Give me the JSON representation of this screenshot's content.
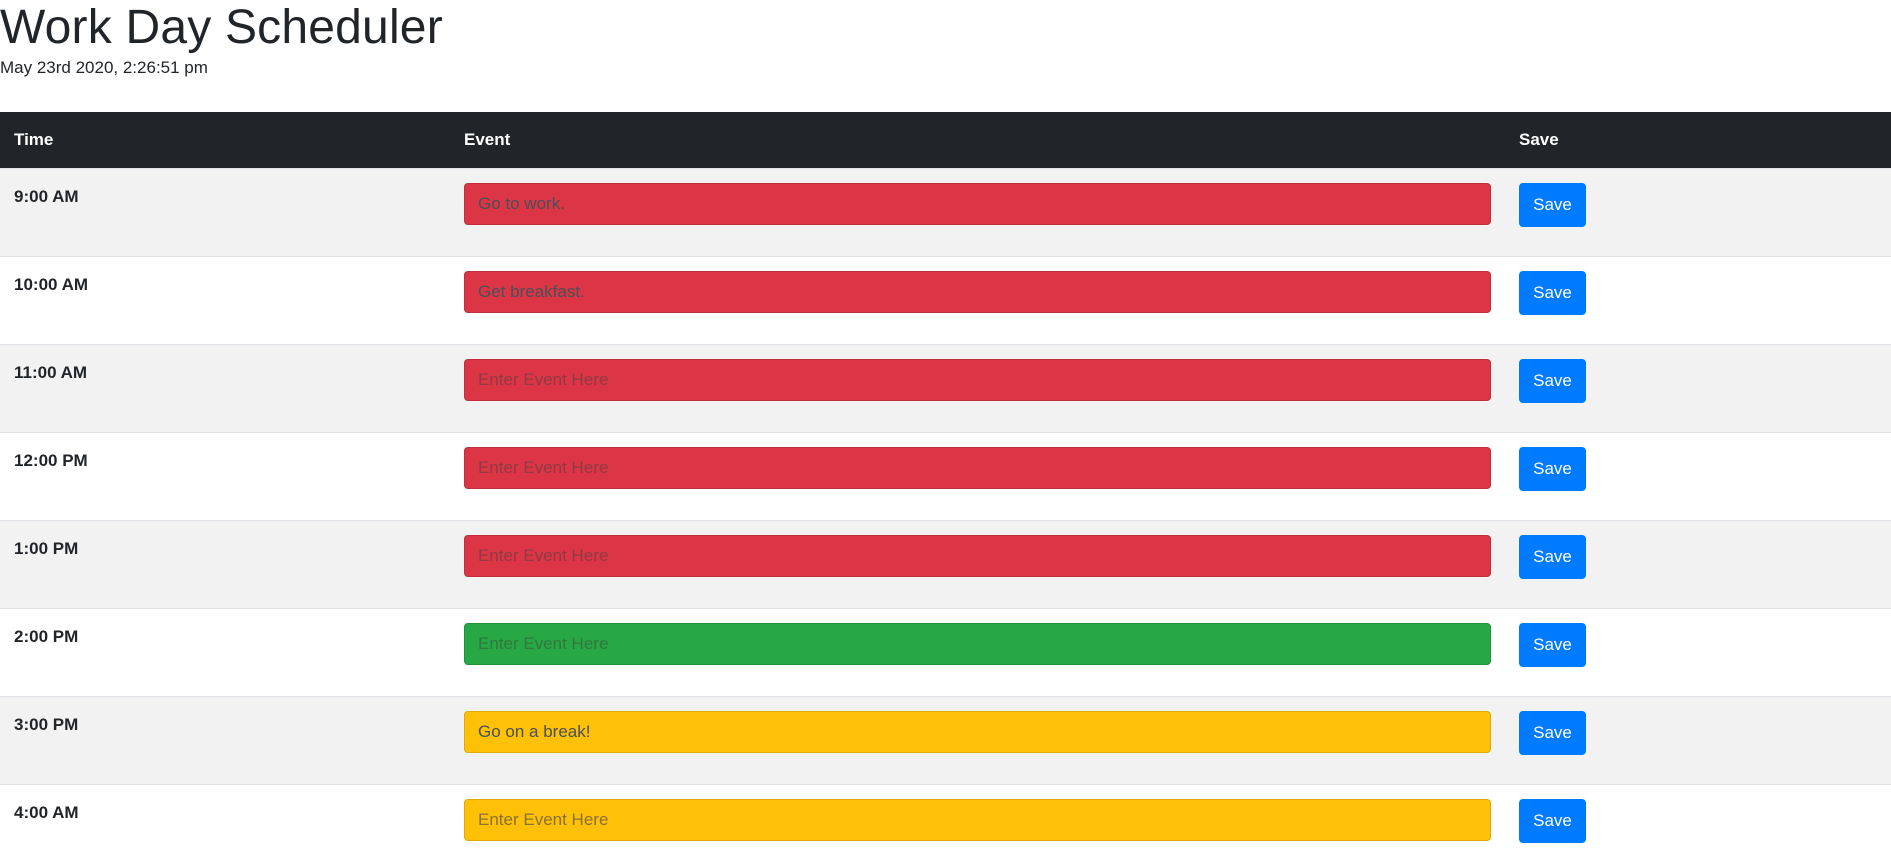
{
  "header": {
    "title": "Work Day Scheduler",
    "timestamp": "May 23rd 2020, 2:26:51 pm"
  },
  "table": {
    "columns": [
      "Time",
      "Event",
      "Save"
    ],
    "rows": [
      {
        "time": "9:00 AM",
        "value": "Go to work.",
        "placeholder": "Enter Event Here",
        "status": "past",
        "save_label": "Save"
      },
      {
        "time": "10:00 AM",
        "value": "Get breakfast.",
        "placeholder": "Enter Event Here",
        "status": "past",
        "save_label": "Save"
      },
      {
        "time": "11:00 AM",
        "value": "",
        "placeholder": "Enter Event Here",
        "status": "past",
        "save_label": "Save"
      },
      {
        "time": "12:00 PM",
        "value": "",
        "placeholder": "Enter Event Here",
        "status": "past",
        "save_label": "Save"
      },
      {
        "time": "1:00 PM",
        "value": "",
        "placeholder": "Enter Event Here",
        "status": "past",
        "save_label": "Save"
      },
      {
        "time": "2:00 PM",
        "value": "",
        "placeholder": "Enter Event Here",
        "status": "present",
        "save_label": "Save"
      },
      {
        "time": "3:00 PM",
        "value": "Go on a break!",
        "placeholder": "Enter Event Here",
        "status": "future",
        "save_label": "Save"
      },
      {
        "time": "4:00 AM",
        "value": "",
        "placeholder": "Enter Event Here",
        "status": "future",
        "save_label": "Save"
      }
    ]
  },
  "colors": {
    "header_bg": "#212529",
    "past": "#dc3545",
    "present": "#28a745",
    "future": "#ffc107",
    "save_button": "#007bff",
    "row_stripe": "#f2f2f2"
  }
}
